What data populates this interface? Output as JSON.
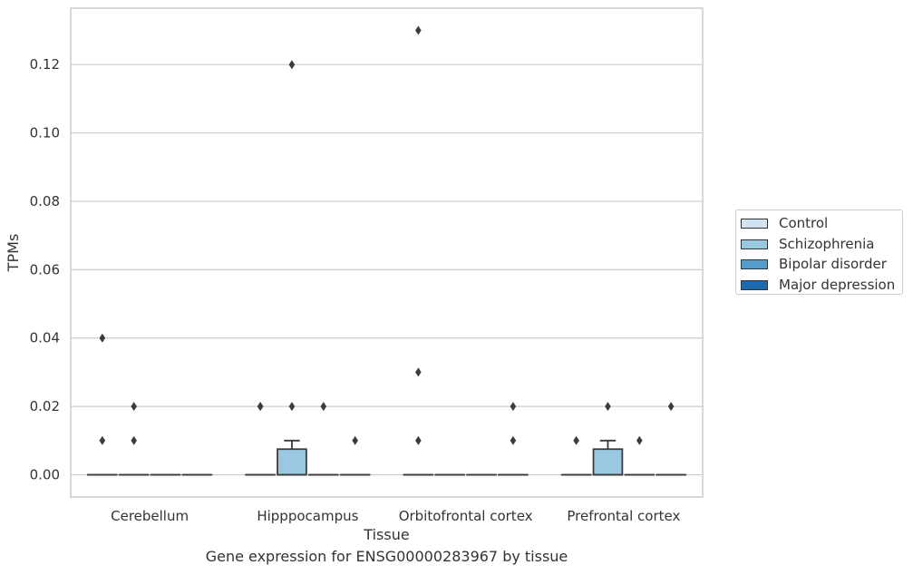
{
  "chart_data": {
    "type": "box",
    "caption": "Gene expression for ENSG00000283967 by tissue",
    "xlabel": "Tissue",
    "ylabel": "TPMs",
    "ylim": [
      -0.0065,
      0.1365
    ],
    "yticks": [
      0.0,
      0.02,
      0.04,
      0.06,
      0.08,
      0.1,
      0.12
    ],
    "ytick_labels": [
      "0.00",
      "0.02",
      "0.04",
      "0.06",
      "0.08",
      "0.10",
      "0.12"
    ],
    "grid": "horizontal",
    "legend_position": "outside-right",
    "categories": [
      "Cerebellum",
      "Hipppocampus",
      "Orbitofrontal cortex",
      "Prefrontal cortex"
    ],
    "series": [
      {
        "name": "Control",
        "color": "#d1e2f2"
      },
      {
        "name": "Schizophrenia",
        "color": "#9ac8e0"
      },
      {
        "name": "Bipolar disorder",
        "color": "#529dcc"
      },
      {
        "name": "Major depression",
        "color": "#1c6aaf"
      }
    ],
    "boxes": [
      [
        {
          "q1": 0,
          "median": 0,
          "q3": 0,
          "whisker_low": 0,
          "whisker_high": 0,
          "outliers": [
            0.01,
            0.04
          ]
        },
        {
          "q1": 0,
          "median": 0,
          "q3": 0,
          "whisker_low": 0,
          "whisker_high": 0,
          "outliers": [
            0.01,
            0.02
          ]
        },
        {
          "q1": 0,
          "median": 0,
          "q3": 0,
          "whisker_low": 0,
          "whisker_high": 0,
          "outliers": []
        },
        {
          "q1": 0,
          "median": 0,
          "q3": 0,
          "whisker_low": 0,
          "whisker_high": 0,
          "outliers": []
        }
      ],
      [
        {
          "q1": 0,
          "median": 0,
          "q3": 0,
          "whisker_low": 0,
          "whisker_high": 0,
          "outliers": [
            0.02,
            0.02
          ]
        },
        {
          "q1": 0,
          "median": 0,
          "q3": 0.0075,
          "whisker_low": 0,
          "whisker_high": 0.01,
          "outliers": [
            0.02,
            0.12
          ]
        },
        {
          "q1": 0,
          "median": 0,
          "q3": 0,
          "whisker_low": 0,
          "whisker_high": 0,
          "outliers": [
            0.02
          ]
        },
        {
          "q1": 0,
          "median": 0,
          "q3": 0,
          "whisker_low": 0,
          "whisker_high": 0,
          "outliers": [
            0.01
          ]
        }
      ],
      [
        {
          "q1": 0,
          "median": 0,
          "q3": 0,
          "whisker_low": 0,
          "whisker_high": 0,
          "outliers": [
            0.01,
            0.03,
            0.13
          ]
        },
        {
          "q1": 0,
          "median": 0,
          "q3": 0,
          "whisker_low": 0,
          "whisker_high": 0,
          "outliers": []
        },
        {
          "q1": 0,
          "median": 0,
          "q3": 0,
          "whisker_low": 0,
          "whisker_high": 0,
          "outliers": []
        },
        {
          "q1": 0,
          "median": 0,
          "q3": 0,
          "whisker_low": 0,
          "whisker_high": 0,
          "outliers": [
            0.01,
            0.02
          ]
        }
      ],
      [
        {
          "q1": 0,
          "median": 0,
          "q3": 0,
          "whisker_low": 0,
          "whisker_high": 0,
          "outliers": [
            0.01
          ]
        },
        {
          "q1": 0,
          "median": 0,
          "q3": 0.0075,
          "whisker_low": 0,
          "whisker_high": 0.01,
          "outliers": [
            0.02
          ]
        },
        {
          "q1": 0,
          "median": 0,
          "q3": 0,
          "whisker_low": 0,
          "whisker_high": 0,
          "outliers": [
            0.01
          ]
        },
        {
          "q1": 0,
          "median": 0,
          "q3": 0,
          "whisker_low": 0,
          "whisker_high": 0,
          "outliers": [
            0.02
          ]
        }
      ]
    ]
  },
  "legend": {
    "items": [
      "Control",
      "Schizophrenia",
      "Bipolar disorder",
      "Major depression"
    ]
  }
}
